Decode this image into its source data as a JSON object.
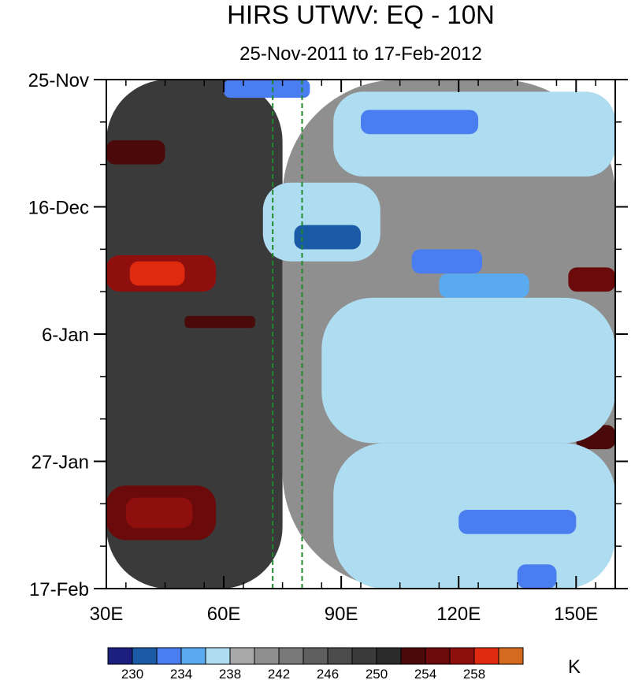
{
  "chart_data": {
    "type": "heatmap",
    "title": "HIRS UTWV: EQ - 10N",
    "subtitle": "25-Nov-2011 to 17-Feb-2012",
    "x_axis": {
      "ticks": [
        30,
        60,
        90,
        120,
        150
      ],
      "tick_labels": [
        "30E",
        "60E",
        "90E",
        "120E",
        "150E"
      ],
      "range": [
        30,
        160
      ]
    },
    "y_axis": {
      "tick_labels": [
        "25-Nov",
        "16-Dec",
        "6-Jan",
        "27-Jan",
        "17-Feb"
      ],
      "tick_days": [
        0,
        21,
        42,
        63,
        84
      ],
      "range_days": [
        0,
        84
      ],
      "inverted": true
    },
    "reference_lines_lon": [
      72.5,
      80
    ],
    "colorbar": {
      "unit": "K",
      "levels": [
        228,
        230,
        232,
        234,
        236,
        238,
        240,
        242,
        244,
        246,
        248,
        250,
        252,
        254,
        256,
        258,
        260
      ],
      "labeled_levels": [
        "230",
        "234",
        "238",
        "242",
        "246",
        "250",
        "254",
        "258"
      ],
      "colors": [
        "#1c1f7e",
        "#1b5ba5",
        "#4a7ef0",
        "#5aaaf0",
        "#aedcf0",
        "#a8a8a8",
        "#8f8f8f",
        "#787878",
        "#5f5f5f",
        "#4b4b4b",
        "#3a3a3a",
        "#2b2b2b",
        "#4a0a0a",
        "#6a0a0a",
        "#8f0f0f",
        "#e02a10",
        "#d46a20"
      ]
    },
    "regions": [
      {
        "lon": [
          30,
          75
        ],
        "day": [
          0,
          84
        ],
        "value": 249
      },
      {
        "lon": [
          75,
          160
        ],
        "day": [
          0,
          84
        ],
        "value": 240
      },
      {
        "lon": [
          30,
          45
        ],
        "day": [
          10,
          14
        ],
        "value": 252
      },
      {
        "lon": [
          30,
          58
        ],
        "day": [
          29,
          35
        ],
        "value": 256
      },
      {
        "lon": [
          36,
          50
        ],
        "day": [
          30,
          34
        ],
        "value": 259
      },
      {
        "lon": [
          50,
          68
        ],
        "day": [
          39,
          41
        ],
        "value": 253
      },
      {
        "lon": [
          30,
          58
        ],
        "day": [
          67,
          76
        ],
        "value": 255
      },
      {
        "lon": [
          35,
          52
        ],
        "day": [
          69,
          74
        ],
        "value": 257
      },
      {
        "lon": [
          148,
          160
        ],
        "day": [
          31,
          35
        ],
        "value": 255
      },
      {
        "lon": [
          150,
          160
        ],
        "day": [
          57,
          61
        ],
        "value": 253
      },
      {
        "lon": [
          60,
          82
        ],
        "day": [
          0,
          3
        ],
        "value": 232
      },
      {
        "lon": [
          88,
          160
        ],
        "day": [
          2,
          16
        ],
        "value": 236
      },
      {
        "lon": [
          95,
          125
        ],
        "day": [
          5,
          9
        ],
        "value": 233
      },
      {
        "lon": [
          70,
          100
        ],
        "day": [
          17,
          30
        ],
        "value": 236
      },
      {
        "lon": [
          78,
          95
        ],
        "day": [
          24,
          28
        ],
        "value": 231
      },
      {
        "lon": [
          108,
          126
        ],
        "day": [
          28,
          32
        ],
        "value": 232
      },
      {
        "lon": [
          115,
          138
        ],
        "day": [
          32,
          36
        ],
        "value": 234
      },
      {
        "lon": [
          85,
          160
        ],
        "day": [
          36,
          60
        ],
        "value": 237
      },
      {
        "lon": [
          88,
          160
        ],
        "day": [
          60,
          84
        ],
        "value": 236
      },
      {
        "lon": [
          120,
          150
        ],
        "day": [
          71,
          75
        ],
        "value": 232
      },
      {
        "lon": [
          135,
          145
        ],
        "day": [
          80,
          84
        ],
        "value": 233
      }
    ]
  }
}
